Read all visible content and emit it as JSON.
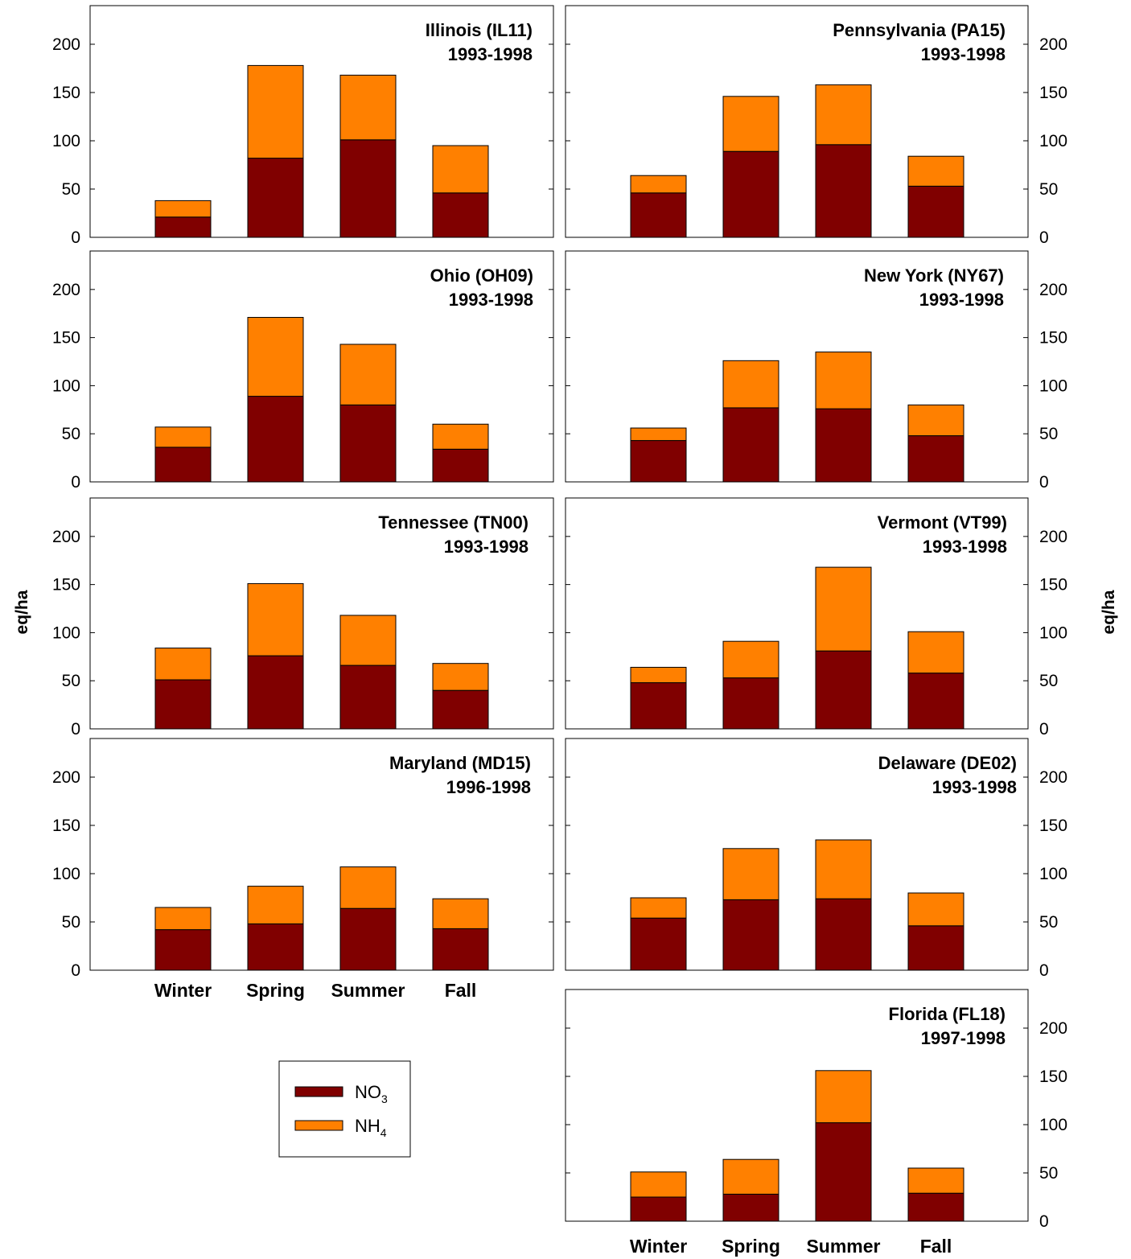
{
  "colors": {
    "no3": "#800000",
    "nh4": "#FF8000",
    "axis": "#000000",
    "background": "#ffffff"
  },
  "y_axis_label": "eq/ha",
  "y_ticks": [
    "0",
    "50",
    "100",
    "150",
    "200"
  ],
  "legend": {
    "items": [
      {
        "base": "NO",
        "sub": "3",
        "color_key": "no3"
      },
      {
        "base": "NH",
        "sub": "4",
        "color_key": "nh4"
      }
    ]
  },
  "chart_data": [
    {
      "type": "bar",
      "stacked": true,
      "title": "Illinois (IL11)",
      "period": "1993-1998",
      "categories": [
        "Winter",
        "Spring",
        "Summer",
        "Fall"
      ],
      "ylim": [
        0,
        240
      ],
      "series": [
        {
          "name": "NO3",
          "values": [
            21,
            82,
            101,
            46
          ]
        },
        {
          "name": "NH4",
          "values": [
            17,
            96,
            67,
            49
          ]
        }
      ]
    },
    {
      "type": "bar",
      "stacked": true,
      "title": "Pennsylvania (PA15)",
      "period": "1993-1998",
      "categories": [
        "Winter",
        "Spring",
        "Summer",
        "Fall"
      ],
      "ylim": [
        0,
        240
      ],
      "series": [
        {
          "name": "NO3",
          "values": [
            46,
            89,
            96,
            53
          ]
        },
        {
          "name": "NH4",
          "values": [
            18,
            57,
            62,
            31
          ]
        }
      ]
    },
    {
      "type": "bar",
      "stacked": true,
      "title": "Ohio (OH09)",
      "period": "1993-1998",
      "categories": [
        "Winter",
        "Spring",
        "Summer",
        "Fall"
      ],
      "ylim": [
        0,
        240
      ],
      "series": [
        {
          "name": "NO3",
          "values": [
            36,
            89,
            80,
            34
          ]
        },
        {
          "name": "NH4",
          "values": [
            21,
            82,
            63,
            26
          ]
        }
      ]
    },
    {
      "type": "bar",
      "stacked": true,
      "title": "New York (NY67)",
      "period": "1993-1998",
      "categories": [
        "Winter",
        "Spring",
        "Summer",
        "Fall"
      ],
      "ylim": [
        0,
        240
      ],
      "series": [
        {
          "name": "NO3",
          "values": [
            43,
            77,
            76,
            48
          ]
        },
        {
          "name": "NH4",
          "values": [
            13,
            49,
            59,
            32
          ]
        }
      ]
    },
    {
      "type": "bar",
      "stacked": true,
      "title": "Tennessee (TN00)",
      "period": "1993-1998",
      "categories": [
        "Winter",
        "Spring",
        "Summer",
        "Fall"
      ],
      "ylim": [
        0,
        240
      ],
      "series": [
        {
          "name": "NO3",
          "values": [
            51,
            76,
            66,
            40
          ]
        },
        {
          "name": "NH4",
          "values": [
            33,
            75,
            52,
            28
          ]
        }
      ]
    },
    {
      "type": "bar",
      "stacked": true,
      "title": "Vermont (VT99)",
      "period": "1993-1998",
      "categories": [
        "Winter",
        "Spring",
        "Summer",
        "Fall"
      ],
      "ylim": [
        0,
        240
      ],
      "series": [
        {
          "name": "NO3",
          "values": [
            48,
            53,
            81,
            58
          ]
        },
        {
          "name": "NH4",
          "values": [
            16,
            38,
            87,
            43
          ]
        }
      ]
    },
    {
      "type": "bar",
      "stacked": true,
      "title": "Maryland (MD15)",
      "period": "1996-1998",
      "categories": [
        "Winter",
        "Spring",
        "Summer",
        "Fall"
      ],
      "ylim": [
        0,
        240
      ],
      "series": [
        {
          "name": "NO3",
          "values": [
            42,
            48,
            64,
            43
          ]
        },
        {
          "name": "NH4",
          "values": [
            23,
            39,
            43,
            31
          ]
        }
      ]
    },
    {
      "type": "bar",
      "stacked": true,
      "title": "Delaware (DE02)",
      "period": "1993-1998",
      "categories": [
        "Winter",
        "Spring",
        "Summer",
        "Fall"
      ],
      "ylim": [
        0,
        240
      ],
      "series": [
        {
          "name": "NO3",
          "values": [
            54,
            73,
            74,
            46
          ]
        },
        {
          "name": "NH4",
          "values": [
            21,
            53,
            61,
            34
          ]
        }
      ]
    },
    {
      "type": "bar",
      "stacked": true,
      "title": "Florida (FL18)",
      "period": "1997-1998",
      "categories": [
        "Winter",
        "Spring",
        "Summer",
        "Fall"
      ],
      "ylim": [
        0,
        240
      ],
      "series": [
        {
          "name": "NO3",
          "values": [
            25,
            28,
            102,
            29
          ]
        },
        {
          "name": "NH4",
          "values": [
            26,
            36,
            54,
            26
          ]
        }
      ]
    }
  ]
}
